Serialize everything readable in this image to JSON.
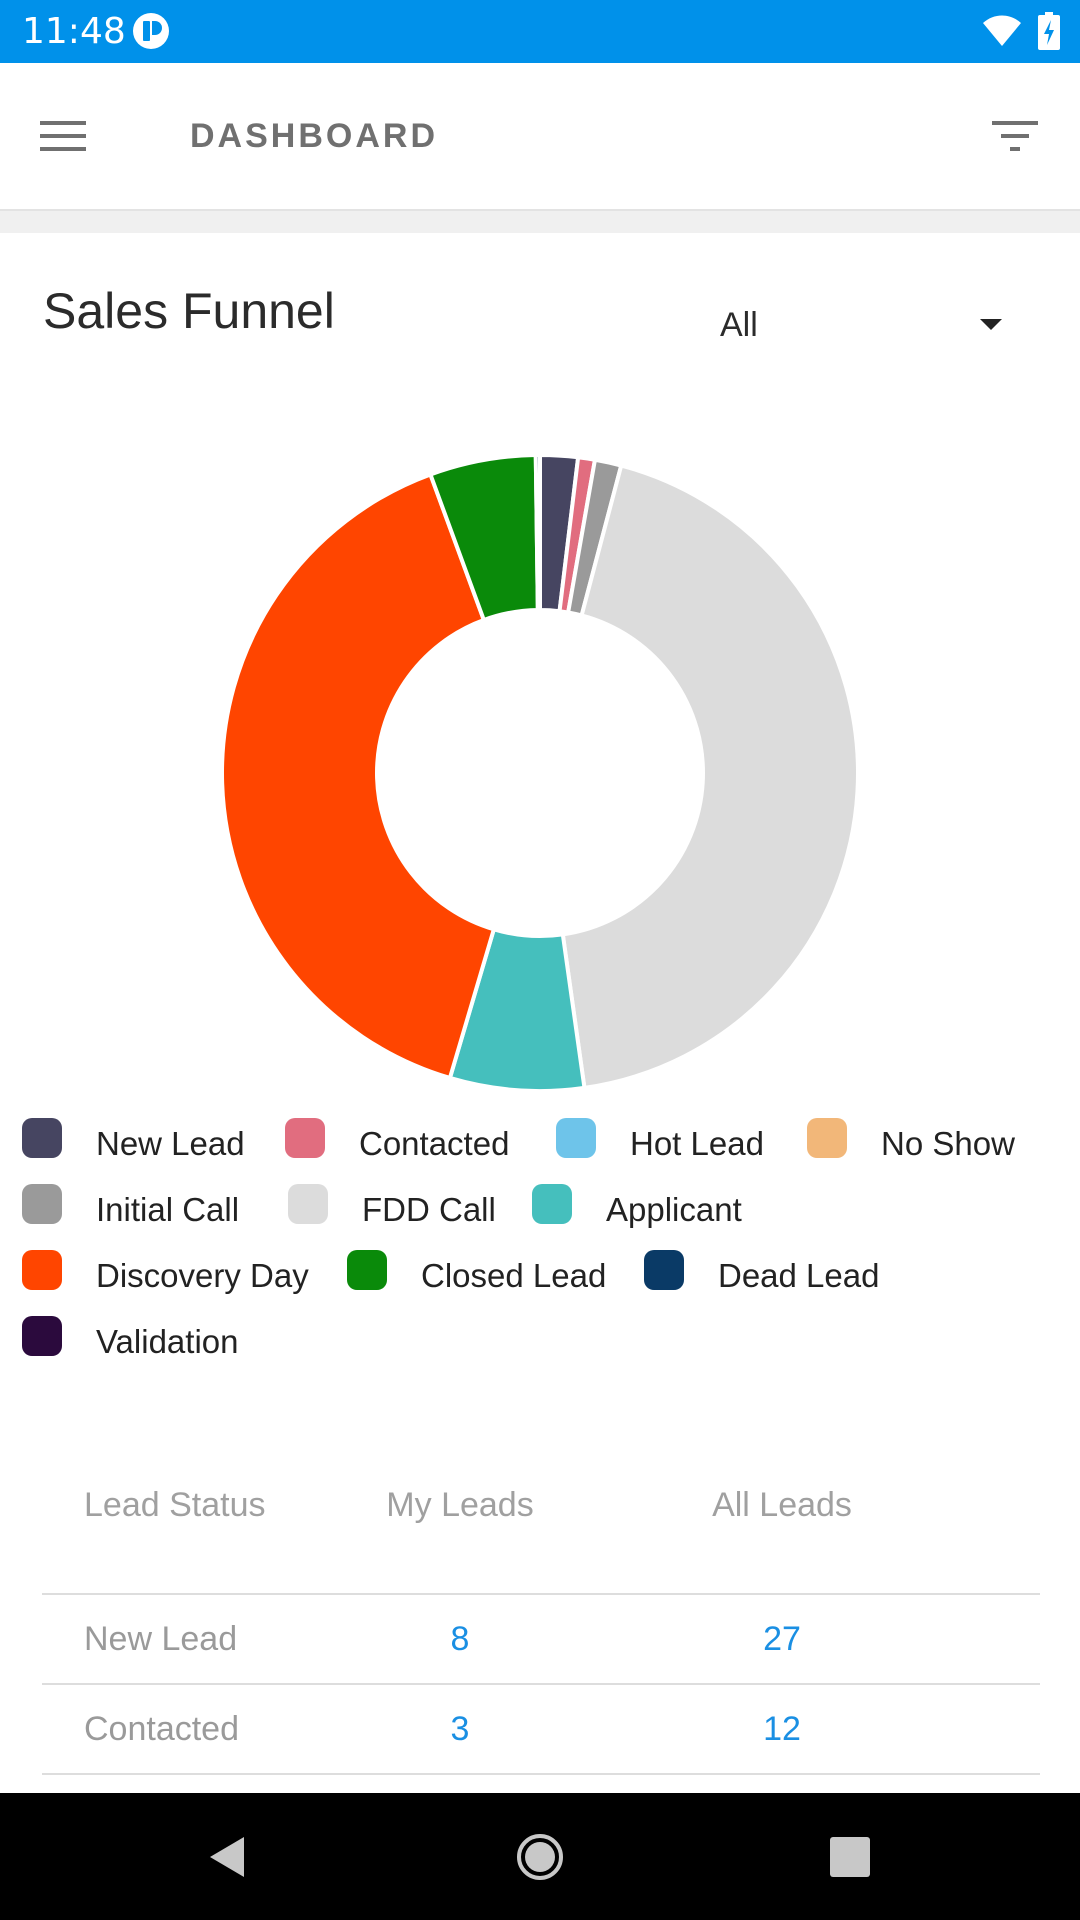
{
  "status_bar": {
    "time": "11:48",
    "icons": [
      "notification-icon",
      "wifi-icon",
      "battery-charging-icon"
    ]
  },
  "app_bar": {
    "title": "DASHBOARD",
    "icons": [
      "hamburger-menu-icon",
      "filter-icon"
    ]
  },
  "sales_funnel": {
    "title": "Sales Funnel",
    "dropdown": {
      "selected": "All"
    }
  },
  "chart_data": {
    "type": "pie",
    "donut": true,
    "categories": [
      "New Lead",
      "Contacted",
      "Hot Lead",
      "No Show",
      "Initial Call",
      "FDD Call",
      "Applicant",
      "Discovery Day",
      "Closed Lead",
      "Dead Lead",
      "Validation"
    ],
    "values": [
      27,
      12,
      0,
      0,
      19,
      616,
      96,
      562,
      76,
      3,
      0
    ],
    "colors": [
      "#464561",
      "#e16d7f",
      "#6ec4ea",
      "#f2b779",
      "#9a9a9a",
      "#dcdcdc",
      "#45bfbd",
      "#ff4500",
      "#0a8a0a",
      "#0a3a66",
      "#2b0a3d"
    ],
    "legend_position": "bottom"
  },
  "table": {
    "headers": [
      "Lead Status",
      "My Leads",
      "All Leads"
    ],
    "rows": [
      {
        "status": "New Lead",
        "my": "8",
        "all": "27"
      },
      {
        "status": "Contacted",
        "my": "3",
        "all": "12"
      }
    ]
  },
  "nav_bar": {
    "icons": [
      "back-icon",
      "home-icon",
      "recent-apps-icon"
    ]
  }
}
